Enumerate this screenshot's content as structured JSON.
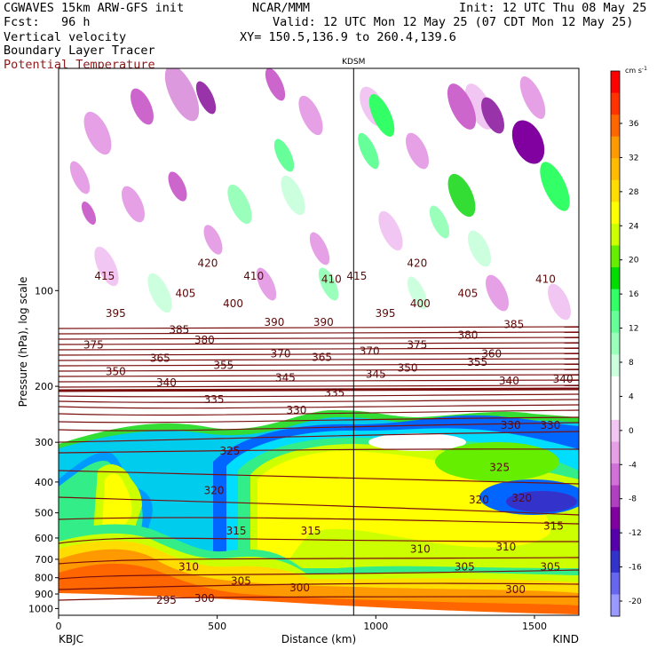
{
  "header": {
    "model": "CGWAVES 15km ARW-GFS init",
    "org": "NCAR/MMM",
    "init": "Init: 12 UTC Thu 08 May 25",
    "fcst": "Fcst:   96 h",
    "valid": "Valid: 12 UTC Mon 12 May 25 (07 CDT Mon 12 May 25)",
    "field1": "Vertical velocity",
    "xy": "XY= 150.5,136.9 to 260.4,139.6",
    "field2": "Boundary Layer Tracer",
    "field3": "Potential Temperature"
  },
  "colors": {
    "contour": "#7a0f0f",
    "text_red": "#8b1a1a"
  },
  "chart_data": {
    "type": "heatmap",
    "xlabel": "Distance (km)",
    "ylabel": "Pressure (hPa), log scale",
    "xlim": [
      0,
      1640
    ],
    "ylim": [
      1050,
      20
    ],
    "x_ticks": [
      "0",
      "500",
      "1000",
      "1500"
    ],
    "x_tick_values": [
      0,
      500,
      1000,
      1500
    ],
    "y_ticks": [
      "100",
      "200",
      "300",
      "400",
      "500",
      "600",
      "700",
      "800",
      "900",
      "1000"
    ],
    "y_tick_values": [
      100,
      200,
      300,
      400,
      500,
      600,
      700,
      800,
      900,
      1000
    ],
    "station_left": "KBJC",
    "station_right": "KIND",
    "station_mid": "KDSM",
    "station_mid_km": 930,
    "colorbar": {
      "units": "cm s",
      "units_exp": "-1",
      "labels": [
        "36",
        "32",
        "28",
        "24",
        "20",
        "16",
        "12",
        "8",
        "4",
        "0",
        "-4",
        "-8",
        "-12",
        "-16",
        "-20"
      ],
      "colors": [
        "#ff0000",
        "#ff3300",
        "#ff6600",
        "#ff9900",
        "#ffbb00",
        "#ffdd00",
        "#ffff00",
        "#ccff00",
        "#66ee00",
        "#00dd00",
        "#33ff66",
        "#66ff99",
        "#99ffbb",
        "#ccffdd",
        "#ffffff",
        "#ffffff",
        "#f2c6f2",
        "#e6a0e6",
        "#d070d8",
        "#b040c0",
        "#8000a0",
        "#5500aa",
        "#3333cc",
        "#6666ee",
        "#9999ff"
      ]
    },
    "theta_labels": [
      {
        "v": "415",
        "x": 145,
        "p": 90
      },
      {
        "v": "420",
        "x": 470,
        "p": 82
      },
      {
        "v": "410",
        "x": 615,
        "p": 90
      },
      {
        "v": "410",
        "x": 860,
        "p": 92
      },
      {
        "v": "415",
        "x": 940,
        "p": 90
      },
      {
        "v": "420",
        "x": 1130,
        "p": 82
      },
      {
        "v": "410",
        "x": 1535,
        "p": 92
      },
      {
        "v": "405",
        "x": 400,
        "p": 102
      },
      {
        "v": "405",
        "x": 1290,
        "p": 102
      },
      {
        "v": "400",
        "x": 550,
        "p": 110
      },
      {
        "v": "400",
        "x": 1140,
        "p": 110
      },
      {
        "v": "395",
        "x": 180,
        "p": 118
      },
      {
        "v": "395",
        "x": 1030,
        "p": 118
      },
      {
        "v": "390",
        "x": 680,
        "p": 126
      },
      {
        "v": "390",
        "x": 835,
        "p": 126
      },
      {
        "v": "385",
        "x": 380,
        "p": 133
      },
      {
        "v": "385",
        "x": 1435,
        "p": 128
      },
      {
        "v": "380",
        "x": 460,
        "p": 143
      },
      {
        "v": "380",
        "x": 1290,
        "p": 138
      },
      {
        "v": "375",
        "x": 110,
        "p": 148
      },
      {
        "v": "375",
        "x": 1130,
        "p": 148
      },
      {
        "v": "370",
        "x": 700,
        "p": 158
      },
      {
        "v": "370",
        "x": 980,
        "p": 155
      },
      {
        "v": "365",
        "x": 320,
        "p": 163
      },
      {
        "v": "365",
        "x": 830,
        "p": 162
      },
      {
        "v": "360",
        "x": 1365,
        "p": 158
      },
      {
        "v": "355",
        "x": 520,
        "p": 172
      },
      {
        "v": "355",
        "x": 1320,
        "p": 168
      },
      {
        "v": "350",
        "x": 180,
        "p": 180
      },
      {
        "v": "350",
        "x": 1100,
        "p": 175
      },
      {
        "v": "345",
        "x": 715,
        "p": 188
      },
      {
        "v": "345",
        "x": 1000,
        "p": 183
      },
      {
        "v": "340",
        "x": 340,
        "p": 195
      },
      {
        "v": "340",
        "x": 1420,
        "p": 192
      },
      {
        "v": "340",
        "x": 1590,
        "p": 190
      },
      {
        "v": "335",
        "x": 490,
        "p": 220
      },
      {
        "v": "335",
        "x": 870,
        "p": 210
      },
      {
        "v": "330",
        "x": 750,
        "p": 238
      },
      {
        "v": "330",
        "x": 1425,
        "p": 265
      },
      {
        "v": "330",
        "x": 1550,
        "p": 265
      },
      {
        "v": "325",
        "x": 540,
        "p": 320
      },
      {
        "v": "325",
        "x": 1390,
        "p": 360
      },
      {
        "v": "320",
        "x": 490,
        "p": 425
      },
      {
        "v": "320",
        "x": 1325,
        "p": 455
      },
      {
        "v": "320",
        "x": 1460,
        "p": 450
      },
      {
        "v": "315",
        "x": 560,
        "p": 570
      },
      {
        "v": "315",
        "x": 795,
        "p": 570
      },
      {
        "v": "315",
        "x": 1560,
        "p": 550
      },
      {
        "v": "310",
        "x": 410,
        "p": 740
      },
      {
        "v": "310",
        "x": 1140,
        "p": 650
      },
      {
        "v": "310",
        "x": 1410,
        "p": 640
      },
      {
        "v": "305",
        "x": 575,
        "p": 820
      },
      {
        "v": "305",
        "x": 1280,
        "p": 740
      },
      {
        "v": "305",
        "x": 1550,
        "p": 740
      },
      {
        "v": "300",
        "x": 760,
        "p": 860
      },
      {
        "v": "300",
        "x": 1440,
        "p": 870
      },
      {
        "v": "300",
        "x": 460,
        "p": 930
      },
      {
        "v": "295",
        "x": 340,
        "p": 940
      }
    ]
  }
}
